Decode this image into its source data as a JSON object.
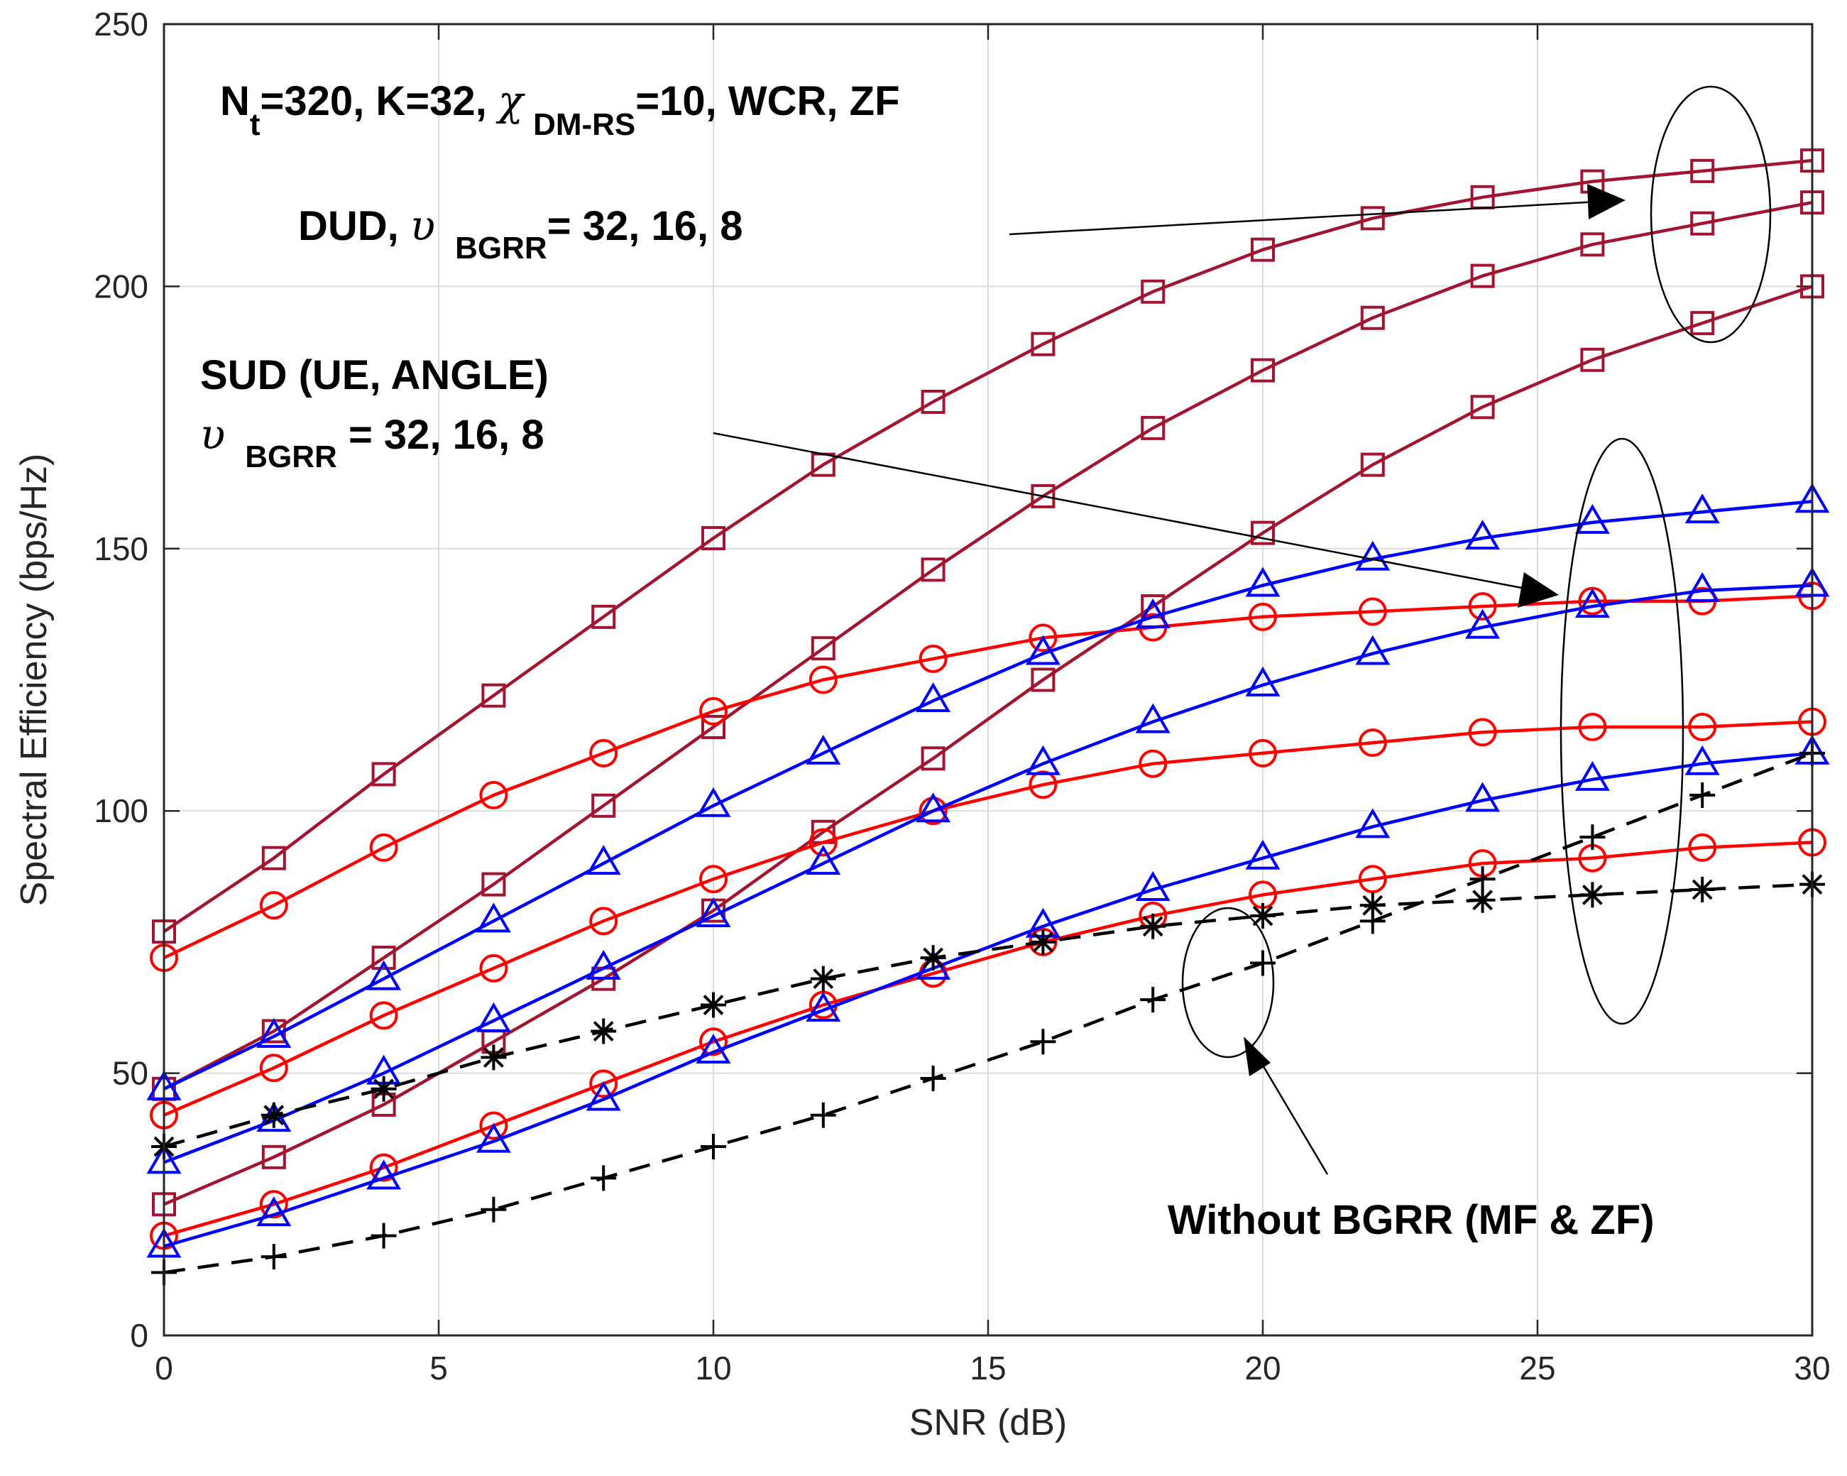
{
  "chart_data": {
    "type": "line",
    "title": "",
    "xlabel": "SNR (dB)",
    "ylabel": "Spectral Efficiency (bps/Hz)",
    "xlim": [
      0,
      30
    ],
    "ylim": [
      0,
      250
    ],
    "xticks": [
      "0",
      "5",
      "10",
      "15",
      "20",
      "25",
      "30"
    ],
    "yticks": [
      "0",
      "50",
      "100",
      "150",
      "200",
      "250"
    ],
    "grid": true,
    "x": [
      0,
      2,
      4,
      6,
      8,
      10,
      12,
      14,
      16,
      18,
      20,
      22,
      24,
      26,
      28,
      30
    ],
    "colors": {
      "dud": "#A2142F",
      "sud_ue": "#FF0000",
      "sud_angle": "#0000FF",
      "baseline": "#000000"
    },
    "series": [
      {
        "name": "DUD, BGRR=32",
        "color": "#A2142F",
        "marker": "square",
        "dash": "solid",
        "values": [
          77,
          91,
          107,
          122,
          137,
          152,
          166,
          178,
          189,
          199,
          207,
          213,
          217,
          220,
          222,
          224
        ]
      },
      {
        "name": "DUD, BGRR=16",
        "color": "#A2142F",
        "marker": "square",
        "dash": "solid",
        "values": [
          47,
          58,
          72,
          86,
          101,
          116,
          131,
          146,
          160,
          173,
          184,
          194,
          202,
          208,
          212,
          216
        ]
      },
      {
        "name": "DUD, BGRR=8",
        "color": "#A2142F",
        "marker": "square",
        "dash": "solid",
        "values": [
          25,
          34,
          44,
          56,
          68,
          81,
          96,
          110,
          125,
          139,
          153,
          166,
          177,
          186,
          193,
          200
        ]
      },
      {
        "name": "SUD (UE), BGRR=32",
        "color": "#FF0000",
        "marker": "circle",
        "dash": "solid",
        "values": [
          72,
          82,
          93,
          103,
          111,
          119,
          125,
          129,
          133,
          135,
          137,
          138,
          139,
          140,
          140,
          141
        ]
      },
      {
        "name": "SUD (UE), BGRR=16",
        "color": "#FF0000",
        "marker": "circle",
        "dash": "solid",
        "values": [
          42,
          51,
          61,
          70,
          79,
          87,
          94,
          100,
          105,
          109,
          111,
          113,
          115,
          116,
          116,
          117
        ]
      },
      {
        "name": "SUD (UE), BGRR=8",
        "color": "#FF0000",
        "marker": "circle",
        "dash": "solid",
        "values": [
          19,
          25,
          32,
          40,
          48,
          56,
          63,
          69,
          75,
          80,
          84,
          87,
          90,
          91,
          93,
          94
        ]
      },
      {
        "name": "SUD (ANGLE), BGRR=32",
        "color": "#0000FF",
        "marker": "triangle",
        "dash": "solid",
        "values": [
          47,
          57,
          68,
          79,
          90,
          101,
          111,
          121,
          130,
          137,
          143,
          148,
          152,
          155,
          157,
          159
        ]
      },
      {
        "name": "SUD (ANGLE), BGRR=16",
        "color": "#0000FF",
        "marker": "triangle",
        "dash": "solid",
        "values": [
          33,
          41,
          50,
          60,
          70,
          80,
          90,
          100,
          109,
          117,
          124,
          130,
          135,
          139,
          142,
          143
        ]
      },
      {
        "name": "SUD (ANGLE), BGRR=8",
        "color": "#0000FF",
        "marker": "triangle",
        "dash": "solid",
        "values": [
          17,
          23,
          30,
          37,
          45,
          54,
          62,
          70,
          78,
          85,
          91,
          97,
          102,
          106,
          109,
          111
        ]
      },
      {
        "name": "Without BGRR (MF)",
        "color": "#000000",
        "marker": "asterisk",
        "dash": "dashed",
        "values": [
          36,
          42,
          47,
          53,
          58,
          63,
          68,
          72,
          75,
          78,
          80,
          82,
          83,
          84,
          85,
          86
        ]
      },
      {
        "name": "Without BGRR (ZF)",
        "color": "#000000",
        "marker": "plus",
        "dash": "dashed",
        "values": [
          12,
          15,
          19,
          24,
          30,
          36,
          42,
          49,
          56,
          64,
          71,
          79,
          87,
          95,
          103,
          111
        ]
      }
    ],
    "annotations": {
      "params": {
        "n": "N",
        "t": "t",
        "rest1": "=320, K=32, ",
        "chi": "χ",
        "dmrs": "DM-RS",
        "rest2": "=10, WCR, ZF"
      },
      "dud": {
        "lead": "DUD, ",
        "upsilon": "υ",
        "sub": "BGRR",
        "tail": "= 32, 16, 8"
      },
      "sud_line1": "SUD (UE, ANGLE)",
      "sud_line2": {
        "upsilon": "υ",
        "sub": "BGRR",
        "tail": " = 32, 16, 8"
      },
      "baseline": "Without BGRR (MF & ZF)"
    }
  }
}
